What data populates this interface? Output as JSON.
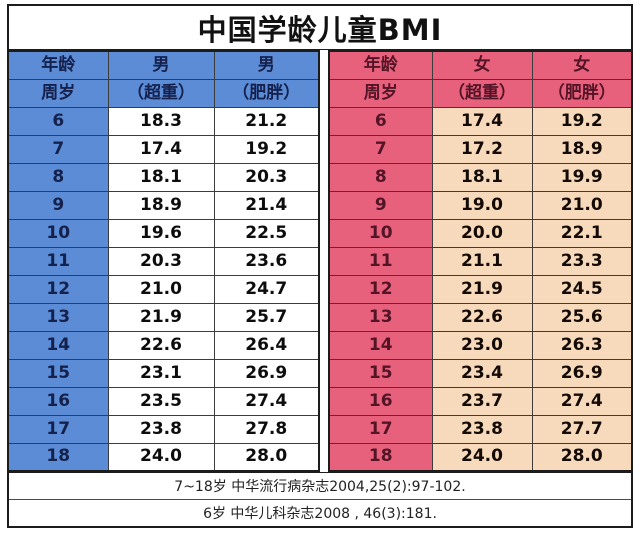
{
  "title": "中国学龄儿童BMI",
  "colors": {
    "boys_header_bg": "#5b8cd5",
    "boys_header_text": "#15214d",
    "girls_header_bg": "#e8617c",
    "girls_header_text": "#521426",
    "girls_value_bg": "#f6dabb",
    "boys_value_bg": "#ffffff",
    "border": "#1c1c1c"
  },
  "boys_table": {
    "header_row1": [
      "年龄",
      "男",
      "男"
    ],
    "header_row2": [
      "周岁",
      "（超重）",
      "（肥胖）"
    ],
    "rows": [
      [
        "6",
        "18.3",
        "21.2"
      ],
      [
        "7",
        "17.4",
        "19.2"
      ],
      [
        "8",
        "18.1",
        "20.3"
      ],
      [
        "9",
        "18.9",
        "21.4"
      ],
      [
        "10",
        "19.6",
        "22.5"
      ],
      [
        "11",
        "20.3",
        "23.6"
      ],
      [
        "12",
        "21.0",
        "24.7"
      ],
      [
        "13",
        "21.9",
        "25.7"
      ],
      [
        "14",
        "22.6",
        "26.4"
      ],
      [
        "15",
        "23.1",
        "26.9"
      ],
      [
        "16",
        "23.5",
        "27.4"
      ],
      [
        "17",
        "23.8",
        "27.8"
      ],
      [
        "18",
        "24.0",
        "28.0"
      ]
    ]
  },
  "girls_table": {
    "header_row1": [
      "年龄",
      "女",
      "女"
    ],
    "header_row2": [
      "周岁",
      "（超重）",
      "（肥胖）"
    ],
    "rows": [
      [
        "6",
        "17.4",
        "19.2"
      ],
      [
        "7",
        "17.2",
        "18.9"
      ],
      [
        "8",
        "18.1",
        "19.9"
      ],
      [
        "9",
        "19.0",
        "21.0"
      ],
      [
        "10",
        "20.0",
        "22.1"
      ],
      [
        "11",
        "21.1",
        "23.3"
      ],
      [
        "12",
        "21.9",
        "24.5"
      ],
      [
        "13",
        "22.6",
        "25.6"
      ],
      [
        "14",
        "23.0",
        "26.3"
      ],
      [
        "15",
        "23.4",
        "26.9"
      ],
      [
        "16",
        "23.7",
        "27.4"
      ],
      [
        "17",
        "23.8",
        "27.7"
      ],
      [
        "18",
        "24.0",
        "28.0"
      ]
    ]
  },
  "footnotes": [
    "7~18岁 中华流行病杂志2004,25(2):97-102.",
    "6岁 中华儿科杂志2008 , 46(3):181."
  ]
}
